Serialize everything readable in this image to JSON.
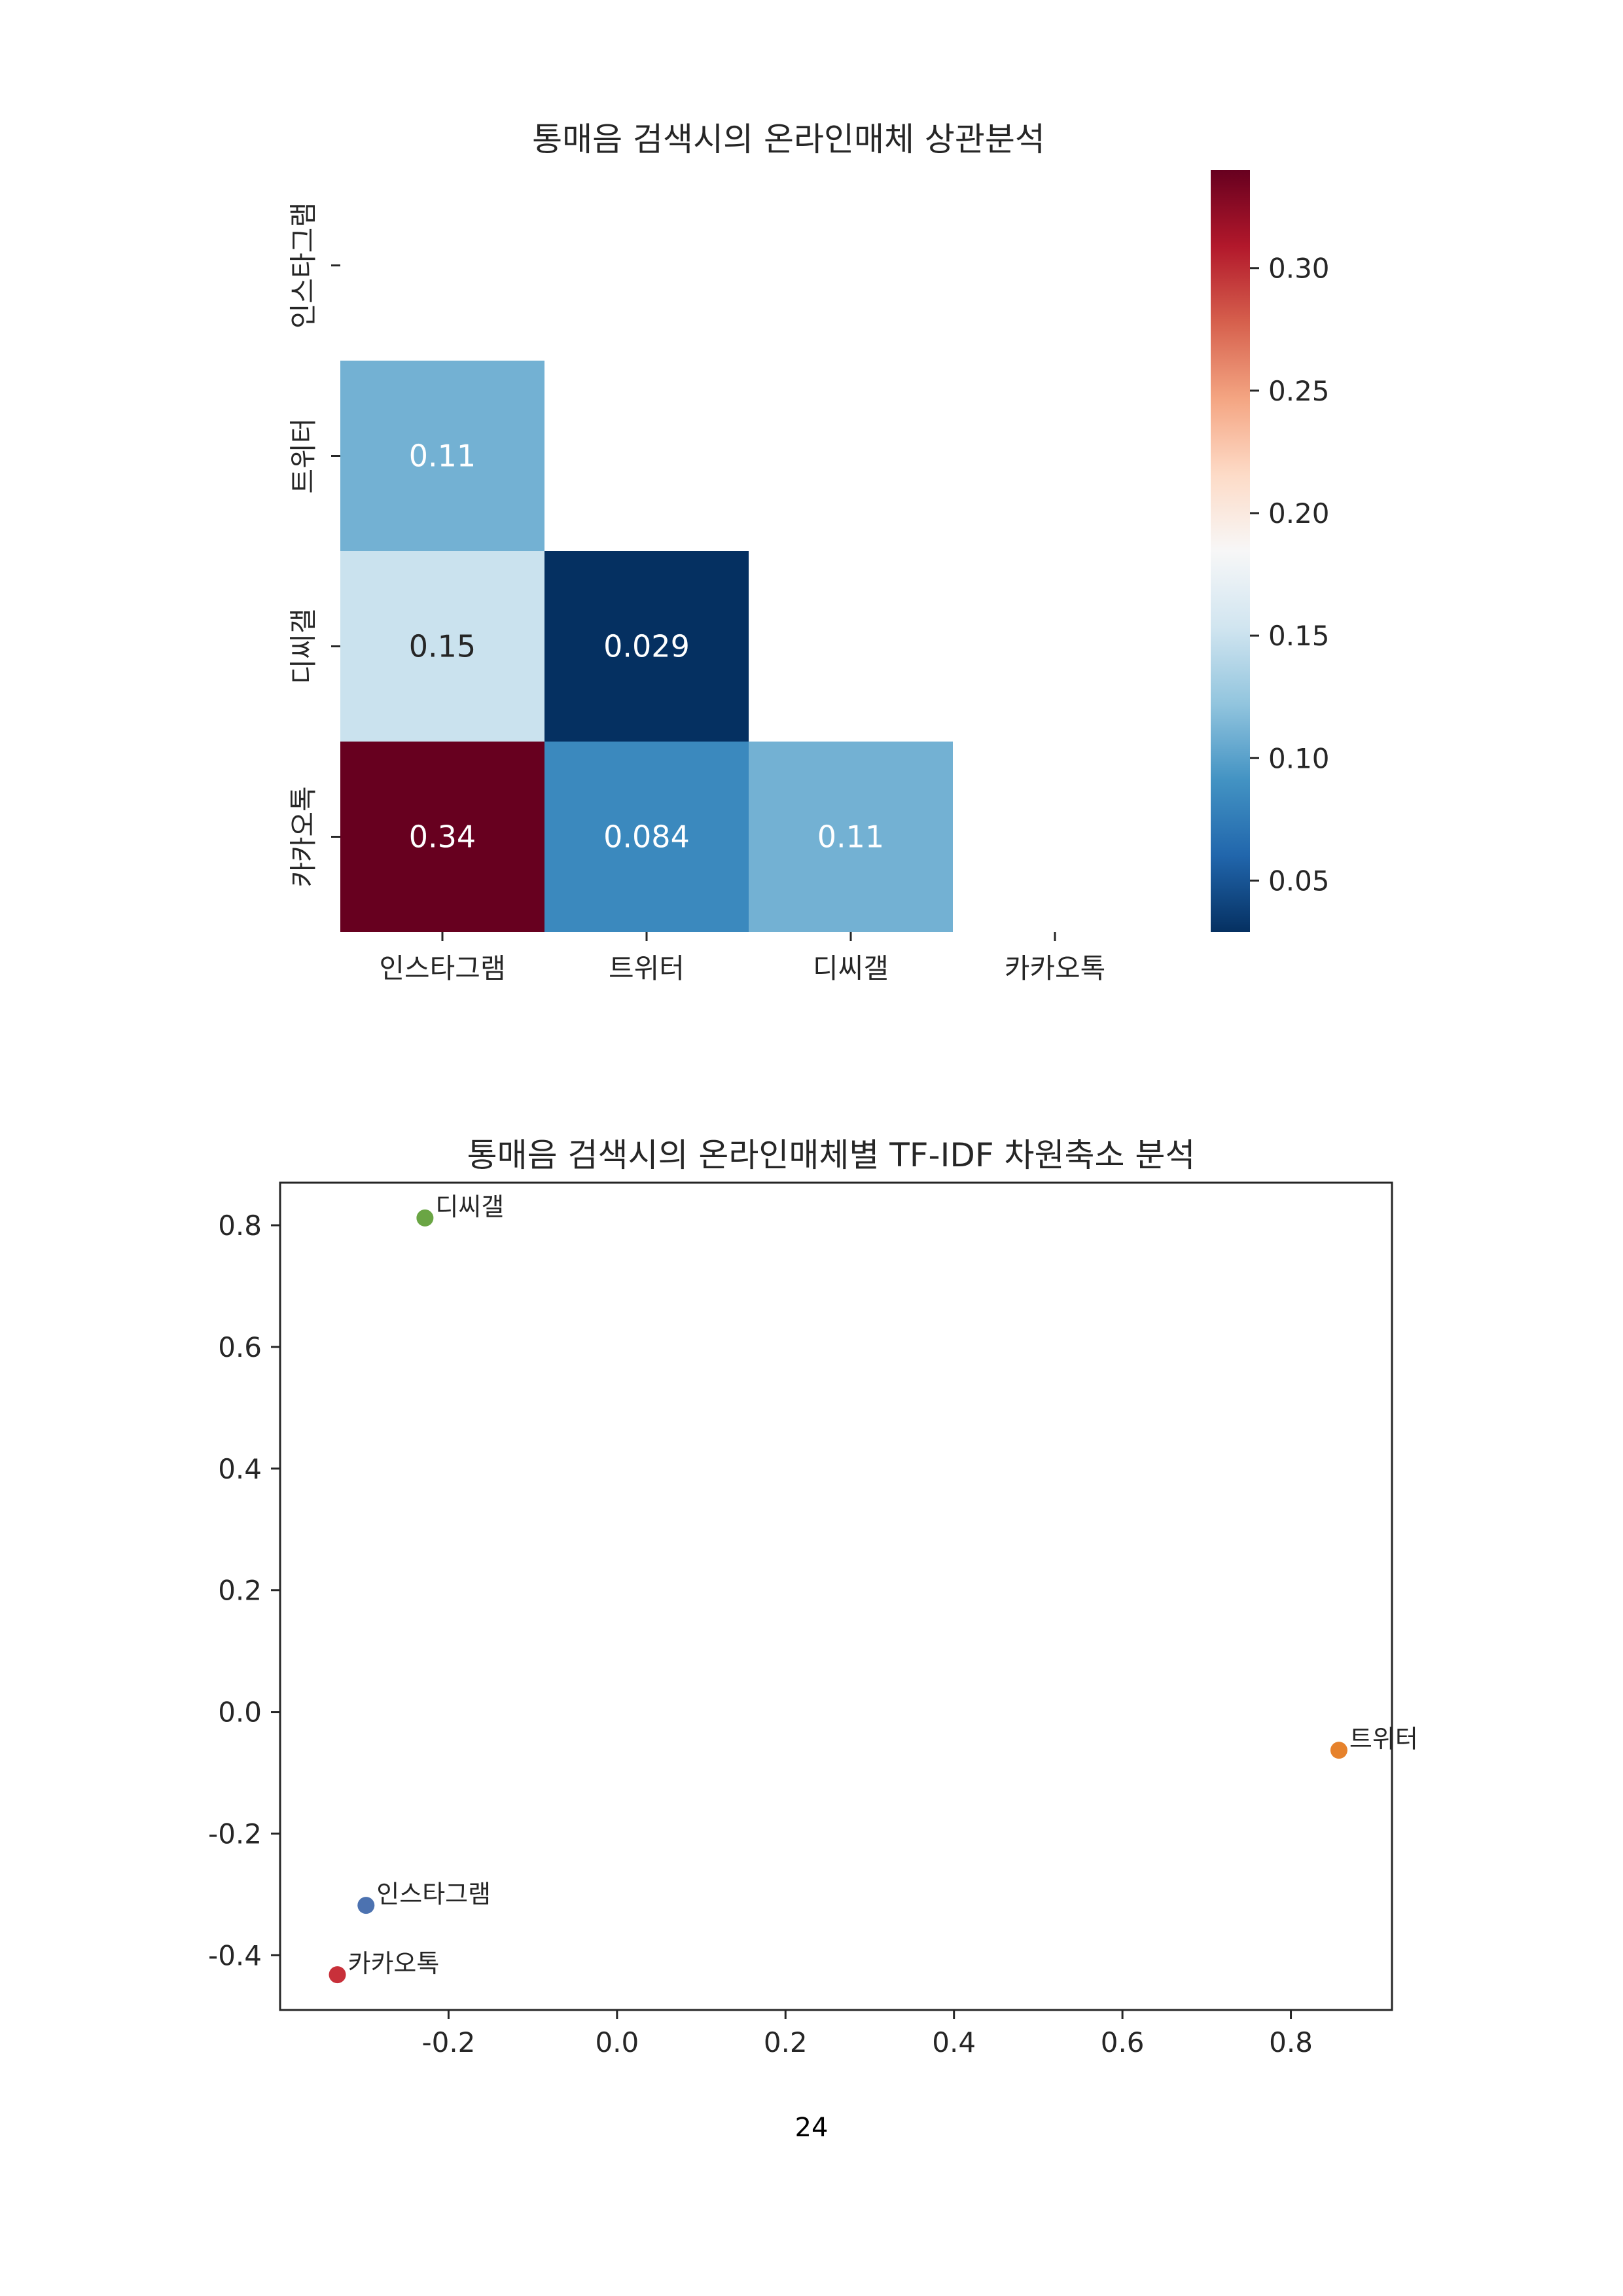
{
  "chart_data": [
    {
      "type": "heatmap",
      "title": "통매음 검색시의 온라인매체 상관분석",
      "rows": [
        "인스타그램",
        "트위터",
        "디씨갤",
        "카카오톡"
      ],
      "columns": [
        "인스타그램",
        "트위터",
        "디씨갤",
        "카카오톡"
      ],
      "mask": "upper-triangle-including-diagonal",
      "cells": [
        {
          "row": "트위터",
          "col": "인스타그램",
          "value": 0.11,
          "label": "0.11"
        },
        {
          "row": "디씨갤",
          "col": "인스타그램",
          "value": 0.15,
          "label": "0.15"
        },
        {
          "row": "디씨갤",
          "col": "트위터",
          "value": 0.029,
          "label": "0.029"
        },
        {
          "row": "카카오톡",
          "col": "인스타그램",
          "value": 0.34,
          "label": "0.34"
        },
        {
          "row": "카카오톡",
          "col": "트위터",
          "value": 0.084,
          "label": "0.084"
        },
        {
          "row": "카카오톡",
          "col": "디씨갤",
          "value": 0.11,
          "label": "0.11"
        }
      ],
      "colorbar": {
        "colormap": "RdBu_r",
        "range": [
          0.029,
          0.34
        ],
        "ticks": [
          0.05,
          0.1,
          0.15,
          0.2,
          0.25,
          0.3
        ],
        "tick_labels": [
          "0.05",
          "0.10",
          "0.15",
          "0.20",
          "0.25",
          "0.30"
        ]
      }
    },
    {
      "type": "scatter",
      "title": "통매음 검색시의 온라인매체별 TF-IDF 차원축소 분석",
      "xlim": [
        -0.4,
        0.92
      ],
      "ylim": [
        -0.49,
        0.87
      ],
      "xticks": [
        -0.2,
        0.0,
        0.2,
        0.4,
        0.6,
        0.8
      ],
      "xtick_labels": [
        "-0.2",
        "0.0",
        "0.2",
        "0.4",
        "0.6",
        "0.8"
      ],
      "yticks": [
        -0.4,
        -0.2,
        0.0,
        0.2,
        0.4,
        0.6,
        0.8
      ],
      "ytick_labels": [
        "-0.4",
        "-0.2",
        "0.0",
        "0.2",
        "0.4",
        "0.6",
        "0.8"
      ],
      "grid": false,
      "points": [
        {
          "label": "인스타그램",
          "x": -0.298,
          "y": -0.318,
          "color": "#4c72b0"
        },
        {
          "label": "트위터",
          "x": 0.857,
          "y": -0.063,
          "color": "#e6822c"
        },
        {
          "label": "디씨갤",
          "x": -0.228,
          "y": 0.812,
          "color": "#6aa544"
        },
        {
          "label": "카카오톡",
          "x": -0.332,
          "y": -0.432,
          "color": "#c8303a"
        }
      ]
    }
  ],
  "page_number": "24"
}
